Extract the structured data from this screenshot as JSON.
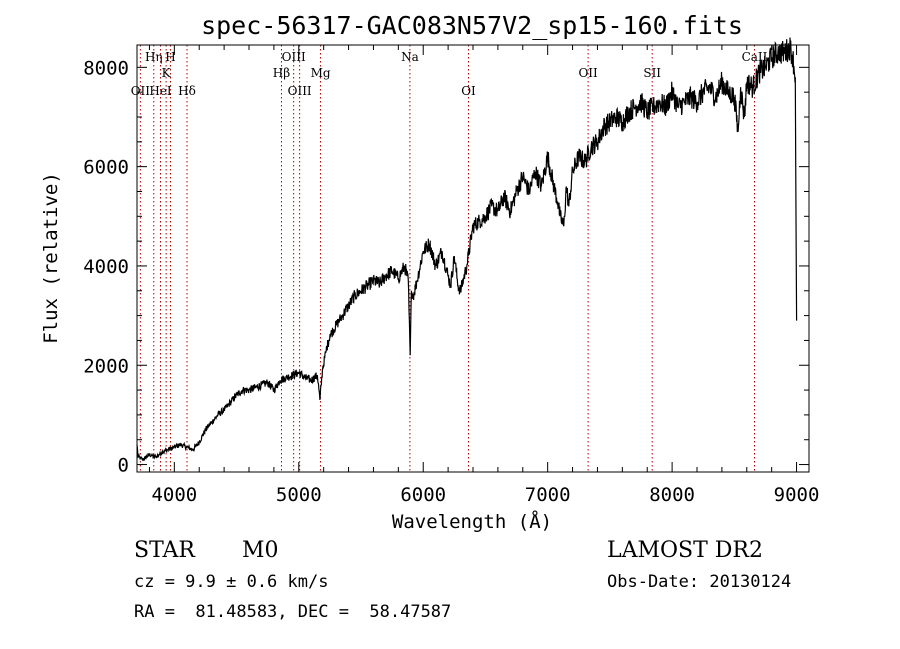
{
  "chart_data": {
    "type": "line",
    "title": "spec-56317-GAC083N57V2_sp15-160.fits",
    "xlabel": "Wavelength (Å)",
    "ylabel": "Flux (relative)",
    "xlim": [
      3700,
      9100
    ],
    "ylim": [
      -150,
      8450
    ],
    "x_ticks": [
      4000,
      5000,
      6000,
      7000,
      8000,
      9000
    ],
    "x_tick_labels": [
      "4000",
      "5000",
      "6000",
      "7000",
      "8000",
      "9000"
    ],
    "y_ticks": [
      0,
      2000,
      4000,
      6000,
      8000
    ],
    "y_tick_labels": [
      "0",
      "2000",
      "4000",
      "6000",
      "8000"
    ],
    "series": [
      {
        "x": [
          3700,
          3710,
          3750,
          3800,
          3850,
          3900,
          3950,
          4000,
          4050,
          4100,
          4150,
          4200,
          4250,
          4300,
          4350,
          4400,
          4450,
          4500,
          4550,
          4600,
          4650,
          4700,
          4750,
          4800,
          4850,
          4900,
          4950,
          5000,
          5050,
          5100,
          5150,
          5170,
          5190,
          5220,
          5250,
          5300,
          5350,
          5400,
          5450,
          5500,
          5550,
          5600,
          5650,
          5700,
          5750,
          5800,
          5850,
          5880,
          5895,
          5905,
          5920,
          5950,
          6000,
          6050,
          6100,
          6150,
          6200,
          6220,
          6250,
          6280,
          6300,
          6350,
          6400,
          6450,
          6500,
          6550,
          6600,
          6650,
          6700,
          6750,
          6800,
          6850,
          6900,
          6950,
          7000,
          7050,
          7080,
          7100,
          7130,
          7150,
          7170,
          7200,
          7250,
          7300,
          7350,
          7400,
          7450,
          7500,
          7550,
          7600,
          7650,
          7700,
          7750,
          7800,
          7850,
          7900,
          7950,
          8000,
          8050,
          8100,
          8150,
          8200,
          8250,
          8300,
          8350,
          8400,
          8450,
          8500,
          8530,
          8550,
          8580,
          8600,
          8650,
          8700,
          8750,
          8800,
          8850,
          8900,
          8950,
          8970,
          8990,
          9000
        ],
        "y": [
          400,
          150,
          100,
          200,
          150,
          250,
          300,
          350,
          400,
          350,
          300,
          450,
          700,
          850,
          1000,
          1100,
          1250,
          1400,
          1500,
          1500,
          1550,
          1600,
          1650,
          1500,
          1700,
          1750,
          1800,
          1850,
          1750,
          1700,
          1800,
          1300,
          1900,
          2300,
          2600,
          2800,
          3000,
          3200,
          3400,
          3500,
          3600,
          3700,
          3650,
          3800,
          3900,
          3750,
          4000,
          3700,
          2200,
          3500,
          3400,
          3700,
          4300,
          4450,
          4000,
          4300,
          3800,
          3600,
          4200,
          3600,
          3500,
          4000,
          4800,
          4900,
          5000,
          5200,
          5100,
          5400,
          5100,
          5500,
          5800,
          5500,
          5900,
          5600,
          6200,
          5600,
          5300,
          5000,
          4800,
          5600,
          5200,
          5900,
          6200,
          6100,
          6400,
          6500,
          6800,
          6900,
          7000,
          6900,
          7100,
          7200,
          7300,
          7100,
          7200,
          7300,
          7200,
          7500,
          7200,
          7300,
          7400,
          7300,
          7500,
          7600,
          7400,
          7700,
          7500,
          7400,
          6700,
          7600,
          7000,
          7700,
          7600,
          7900,
          8000,
          8200,
          8300,
          8300,
          8400,
          8200,
          7800,
          2900
        ]
      }
    ],
    "spectral_lines": [
      {
        "label": "OII",
        "x": 3727,
        "label_row": 2
      },
      {
        "label": "Hη",
        "x": 3835,
        "label_row": 0
      },
      {
        "label": "HeI",
        "x": 3889,
        "label_row": 2
      },
      {
        "label": "K",
        "x": 3934,
        "label_row": 1
      },
      {
        "label": "H",
        "x": 3969,
        "label_row": 0
      },
      {
        "label": "Hδ",
        "x": 4102,
        "label_row": 2
      },
      {
        "label": "Hβ",
        "x": 4861,
        "label_row": 1
      },
      {
        "label": "OIII",
        "x": 4959,
        "label_row": 0
      },
      {
        "label": "OIII",
        "x": 5007,
        "label_row": 2
      },
      {
        "label": "Mg",
        "x": 5175,
        "label_row": 1
      },
      {
        "label": "Na",
        "x": 5893,
        "label_row": 0
      },
      {
        "label": "OI",
        "x": 6364,
        "label_row": 2
      },
      {
        "label": "OII",
        "x": 7325,
        "label_row": 1
      },
      {
        "label": "SII",
        "x": 7840,
        "label_row": 1
      },
      {
        "label": "CaII",
        "x": 8662,
        "label_row": 0
      }
    ],
    "line_marker_color": "#b00000",
    "grid": false,
    "legend": "none"
  },
  "info": {
    "object_class": "STAR",
    "subclass": "M0",
    "survey": "LAMOST DR2",
    "redshift": "cz = 9.9 ± 0.6 km/s",
    "obs_date": "Obs-Date: 20130124",
    "coords": "RA =  81.48583, DEC =  58.47587"
  }
}
